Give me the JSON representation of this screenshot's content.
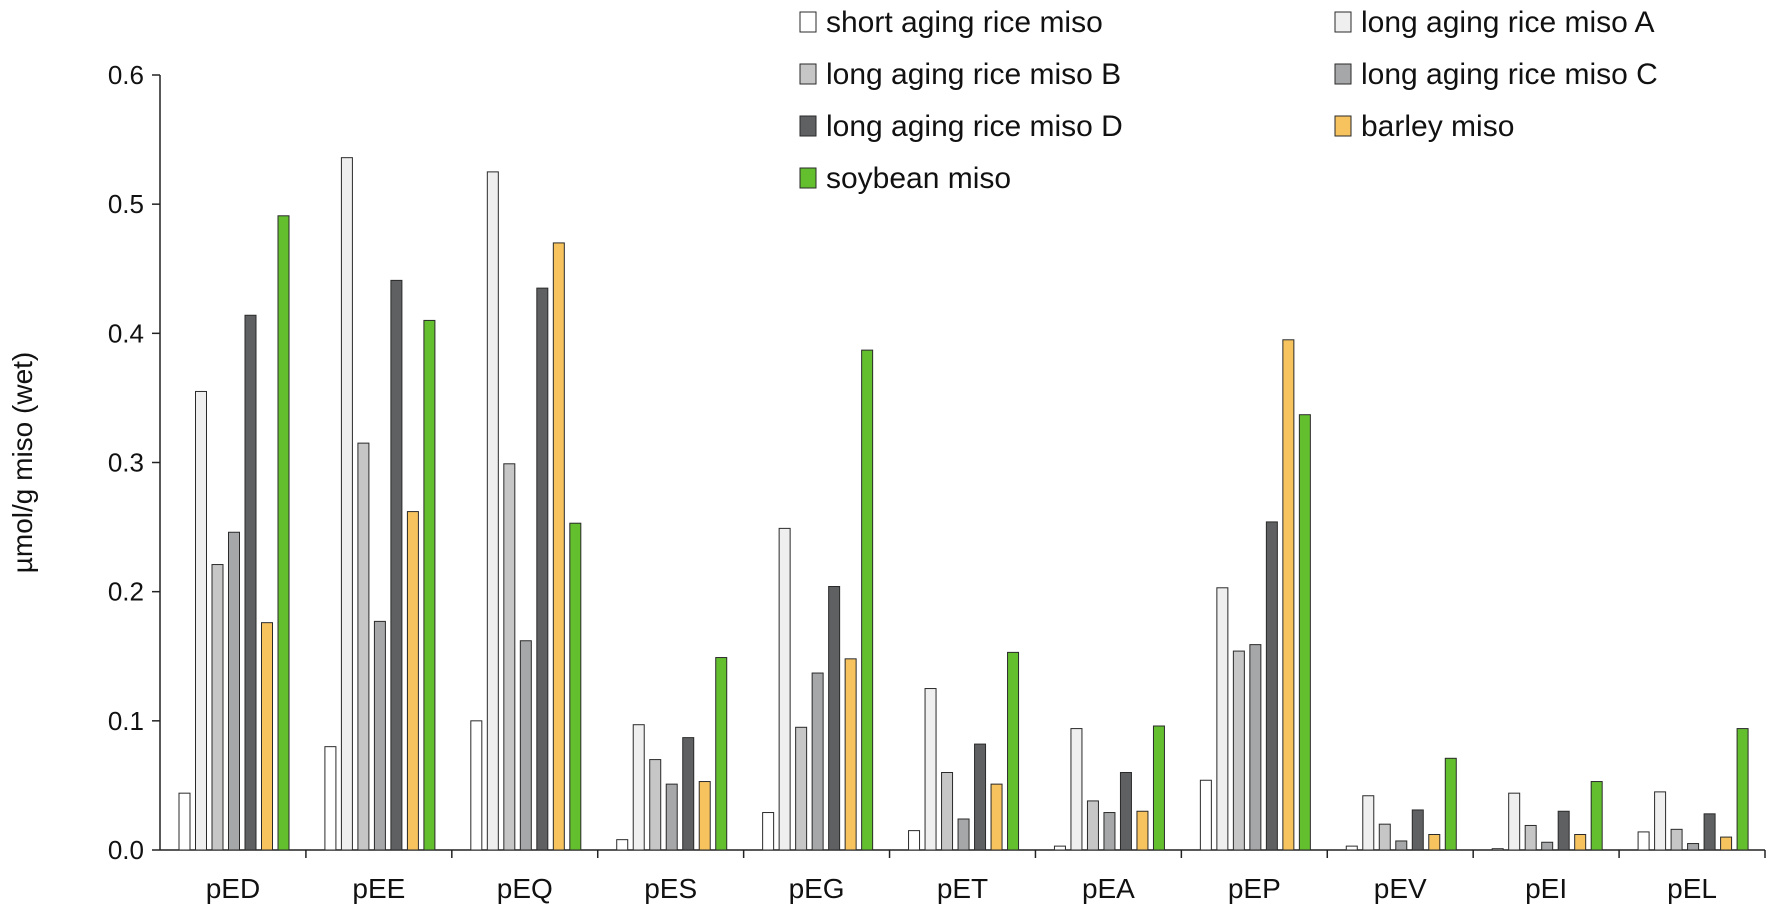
{
  "chart_data": {
    "type": "bar",
    "title": "",
    "xlabel": "",
    "ylabel": "µmol/g miso (wet)",
    "ylim": [
      0,
      0.6
    ],
    "yticks": [
      "0.0",
      "0.1",
      "0.2",
      "0.3",
      "0.4",
      "0.5",
      "0.6"
    ],
    "grid": false,
    "legend_position": "top-right",
    "categories": [
      "pED",
      "pEE",
      "pEQ",
      "pES",
      "pEG",
      "pET",
      "pEA",
      "pEP",
      "pEV",
      "pEI",
      "pEL"
    ],
    "series": [
      {
        "name": "short aging rice miso",
        "color": "#ffffff",
        "values": [
          0.044,
          0.08,
          0.1,
          0.008,
          0.029,
          0.015,
          0.003,
          0.054,
          0.003,
          0.001,
          0.014
        ]
      },
      {
        "name": "long aging rice miso A",
        "color": "#efefef",
        "values": [
          0.355,
          0.536,
          0.525,
          0.097,
          0.249,
          0.125,
          0.094,
          0.203,
          0.042,
          0.044,
          0.045
        ]
      },
      {
        "name": "long aging rice miso B",
        "color": "#c6c6c6",
        "values": [
          0.221,
          0.315,
          0.299,
          0.07,
          0.095,
          0.06,
          0.038,
          0.154,
          0.02,
          0.019,
          0.016
        ]
      },
      {
        "name": "long aging rice miso C",
        "color": "#a5a7a8",
        "values": [
          0.246,
          0.177,
          0.162,
          0.051,
          0.137,
          0.024,
          0.029,
          0.159,
          0.007,
          0.006,
          0.005
        ]
      },
      {
        "name": "long aging rice miso D",
        "color": "#5f6062",
        "values": [
          0.414,
          0.441,
          0.435,
          0.087,
          0.204,
          0.082,
          0.06,
          0.254,
          0.031,
          0.03,
          0.028
        ]
      },
      {
        "name": "barley miso",
        "color": "#f6c35f",
        "values": [
          0.176,
          0.262,
          0.47,
          0.053,
          0.148,
          0.051,
          0.03,
          0.395,
          0.012,
          0.012,
          0.01
        ]
      },
      {
        "name": "soybean miso",
        "color": "#64bf2f",
        "values": [
          0.491,
          0.41,
          0.253,
          0.149,
          0.387,
          0.153,
          0.096,
          0.337,
          0.071,
          0.053,
          0.094
        ]
      }
    ]
  }
}
